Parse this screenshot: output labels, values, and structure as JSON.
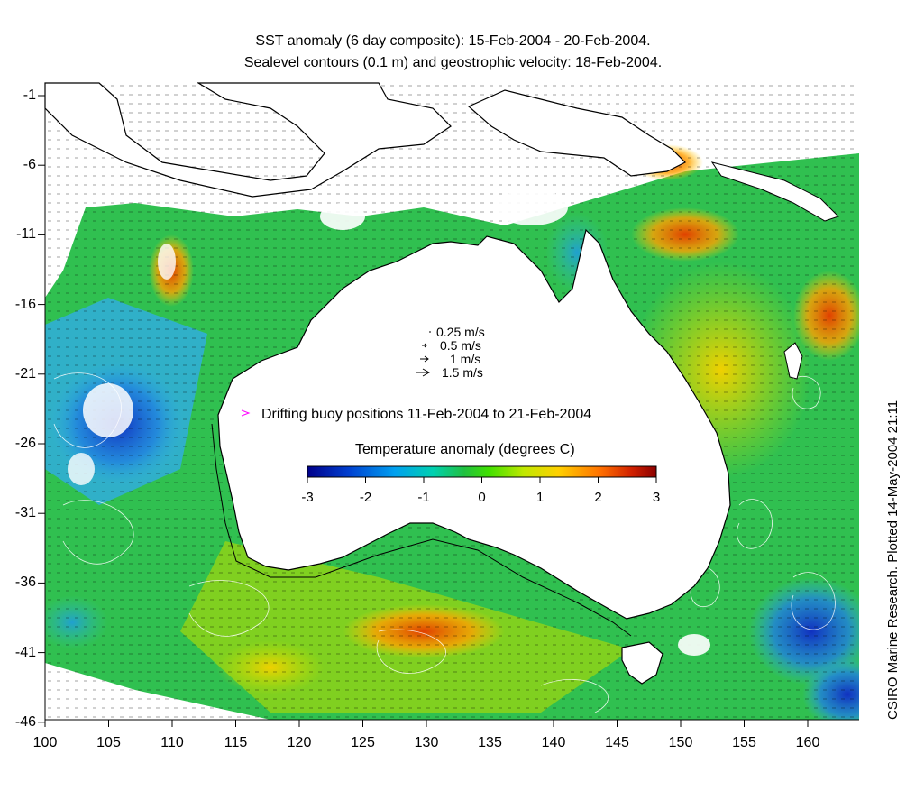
{
  "title_line1": "SST anomaly (6 day composite): 15-Feb-2004 - 20-Feb-2004.",
  "title_line2": "Sealevel contours (0.1 m) and geostrophic velocity: 18-Feb-2004.",
  "credit": "CSIRO Marine Research. Plotted 14-May-2004 21:11",
  "x_ticks": [
    "100",
    "105",
    "110",
    "115",
    "120",
    "125",
    "130",
    "135",
    "140",
    "145",
    "150",
    "155",
    "160"
  ],
  "y_ticks": [
    "-1",
    "-6",
    "-11",
    "-16",
    "-21",
    "-26",
    "-31",
    "-36",
    "-41",
    "-46"
  ],
  "velocity_legend": [
    "0.25 m/s",
    "0.5 m/s",
    "1 m/s",
    "1.5 m/s"
  ],
  "buoy_legend": "Drifting buoy positions 11-Feb-2004 to 21-Feb-2004",
  "colorbar": {
    "title": "Temperature anomaly (degrees C)",
    "ticks": [
      "-3",
      "-2",
      "-1",
      "0",
      "1",
      "2",
      "3"
    ],
    "colors": [
      "#00008b",
      "#0050e0",
      "#00c0e8",
      "#20c860",
      "#40e000",
      "#b0e000",
      "#ffd000",
      "#ff8000",
      "#c02000",
      "#8b0000"
    ]
  },
  "colors": {
    "land": "#ffffff",
    "coast": "#000000",
    "buoy": "#ff00ff",
    "contour": "#ffffff"
  }
}
